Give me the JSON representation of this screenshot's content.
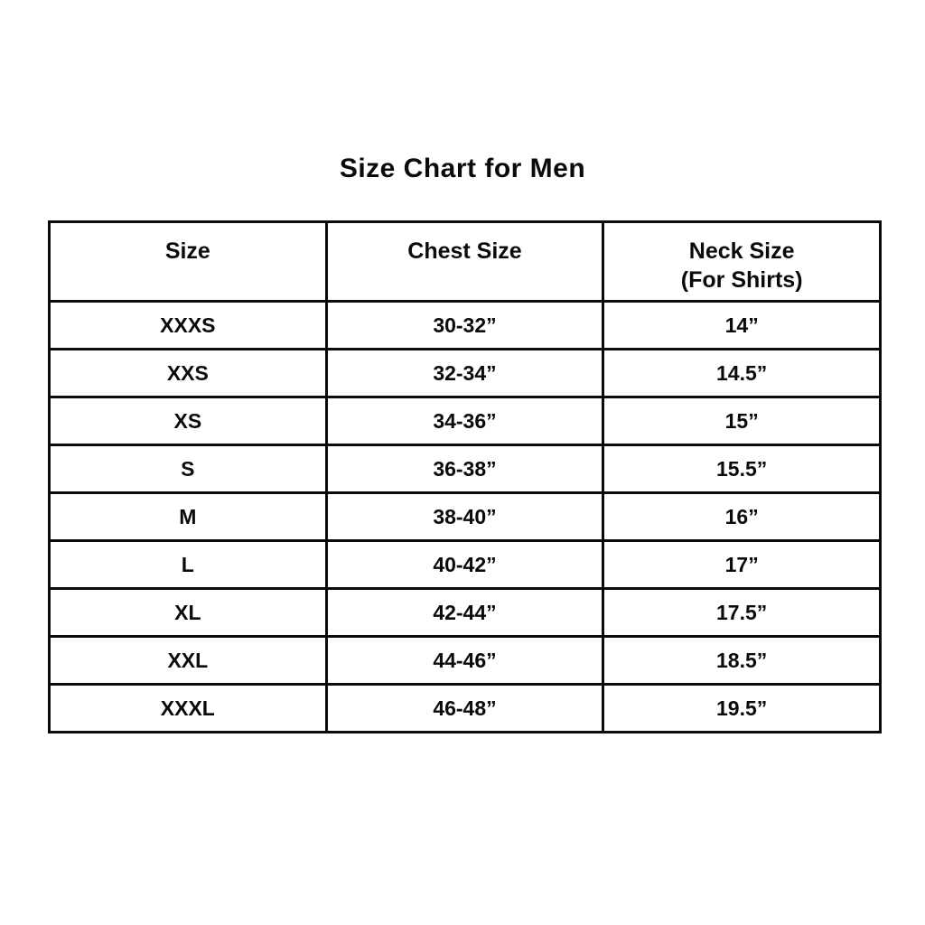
{
  "page": {
    "title": "Size Chart for Men"
  },
  "table": {
    "columns": [
      {
        "label": "Size",
        "sublabel": ""
      },
      {
        "label": "Chest Size",
        "sublabel": ""
      },
      {
        "label": "Neck Size",
        "sublabel": "(For Shirts)"
      }
    ],
    "rows": [
      {
        "size": "XXXS",
        "chest": "30-32”",
        "neck": "14”"
      },
      {
        "size": "XXS",
        "chest": "32-34”",
        "neck": "14.5”"
      },
      {
        "size": "XS",
        "chest": "34-36”",
        "neck": "15”"
      },
      {
        "size": "S",
        "chest": "36-38”",
        "neck": "15.5”"
      },
      {
        "size": "M",
        "chest": "38-40”",
        "neck": "16”"
      },
      {
        "size": "L",
        "chest": "40-42”",
        "neck": "17”"
      },
      {
        "size": "XL",
        "chest": "42-44”",
        "neck": "17.5”"
      },
      {
        "size": "XXL",
        "chest": "44-46”",
        "neck": "18.5”"
      },
      {
        "size": "XXXL",
        "chest": "46-48”",
        "neck": "19.5”"
      }
    ]
  },
  "colors": {
    "background": "#ffffff",
    "text": "#0a0a0a",
    "border": "#0a0a0a"
  },
  "chart_data": {
    "type": "table",
    "title": "Size Chart for Men",
    "columns": [
      "Size",
      "Chest Size",
      "Neck Size (For Shirts)"
    ],
    "rows": [
      [
        "XXXS",
        "30-32”",
        "14”"
      ],
      [
        "XXS",
        "32-34”",
        "14.5”"
      ],
      [
        "XS",
        "34-36”",
        "15”"
      ],
      [
        "S",
        "36-38”",
        "15.5”"
      ],
      [
        "M",
        "38-40”",
        "16”"
      ],
      [
        "L",
        "40-42”",
        "17”"
      ],
      [
        "XL",
        "42-44”",
        "17.5”"
      ],
      [
        "XXL",
        "44-46”",
        "18.5”"
      ],
      [
        "XXXL",
        "46-48”",
        "19.5”"
      ]
    ]
  }
}
